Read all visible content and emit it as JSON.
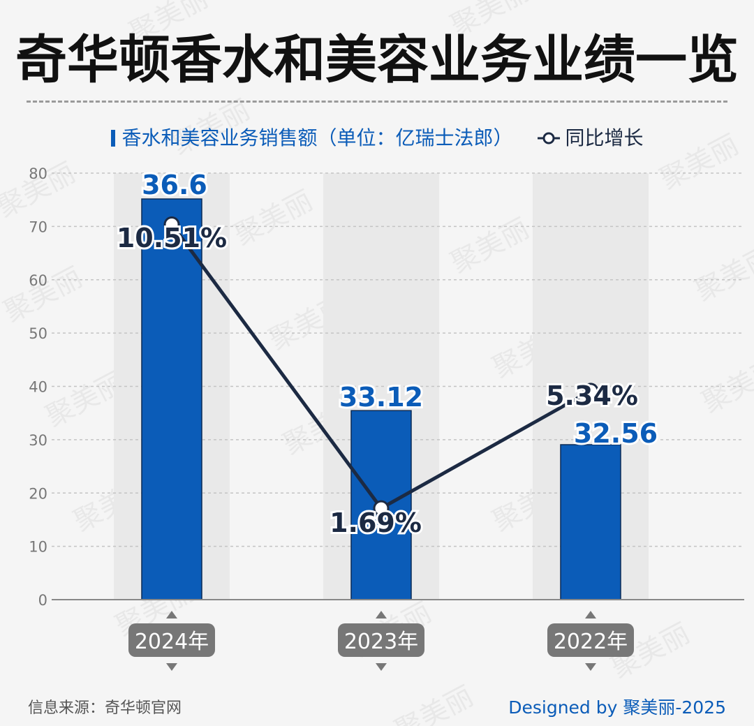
{
  "title": "奇华顿香水和美容业务业绩一览",
  "legend": {
    "bar_label": "香水和美容业务销售额（单位：亿瑞士法郎）",
    "line_label": "同比增长"
  },
  "footer": {
    "source": "信息来源：奇华顿官网",
    "credit": "Designed by 聚美丽-2025"
  },
  "watermark": "聚美丽",
  "colors": {
    "bar": "#0b5cb8",
    "line": "#1c2a43",
    "bar_label": "#0b5cb8",
    "badge": "#777777",
    "band": "#e9e9e9"
  },
  "chart_data": {
    "type": "bar",
    "categories": [
      "2024年",
      "2023年",
      "2022年"
    ],
    "series": [
      {
        "name": "香水和美容业务销售额（单位：亿瑞士法郎）",
        "type": "bar",
        "values": [
          36.6,
          33.12,
          32.56
        ],
        "labels": [
          "36.6",
          "33.12",
          "32.56"
        ]
      },
      {
        "name": "同比增长",
        "type": "line",
        "values": [
          10.51,
          1.69,
          5.34
        ],
        "labels": [
          "10.51%",
          "1.69%",
          "5.34%"
        ]
      }
    ],
    "y_ticks": [
      0,
      10,
      20,
      30,
      40,
      50,
      60,
      70,
      80
    ],
    "ylim": [
      0,
      80
    ],
    "grid": true,
    "legend_position": "top-center"
  }
}
